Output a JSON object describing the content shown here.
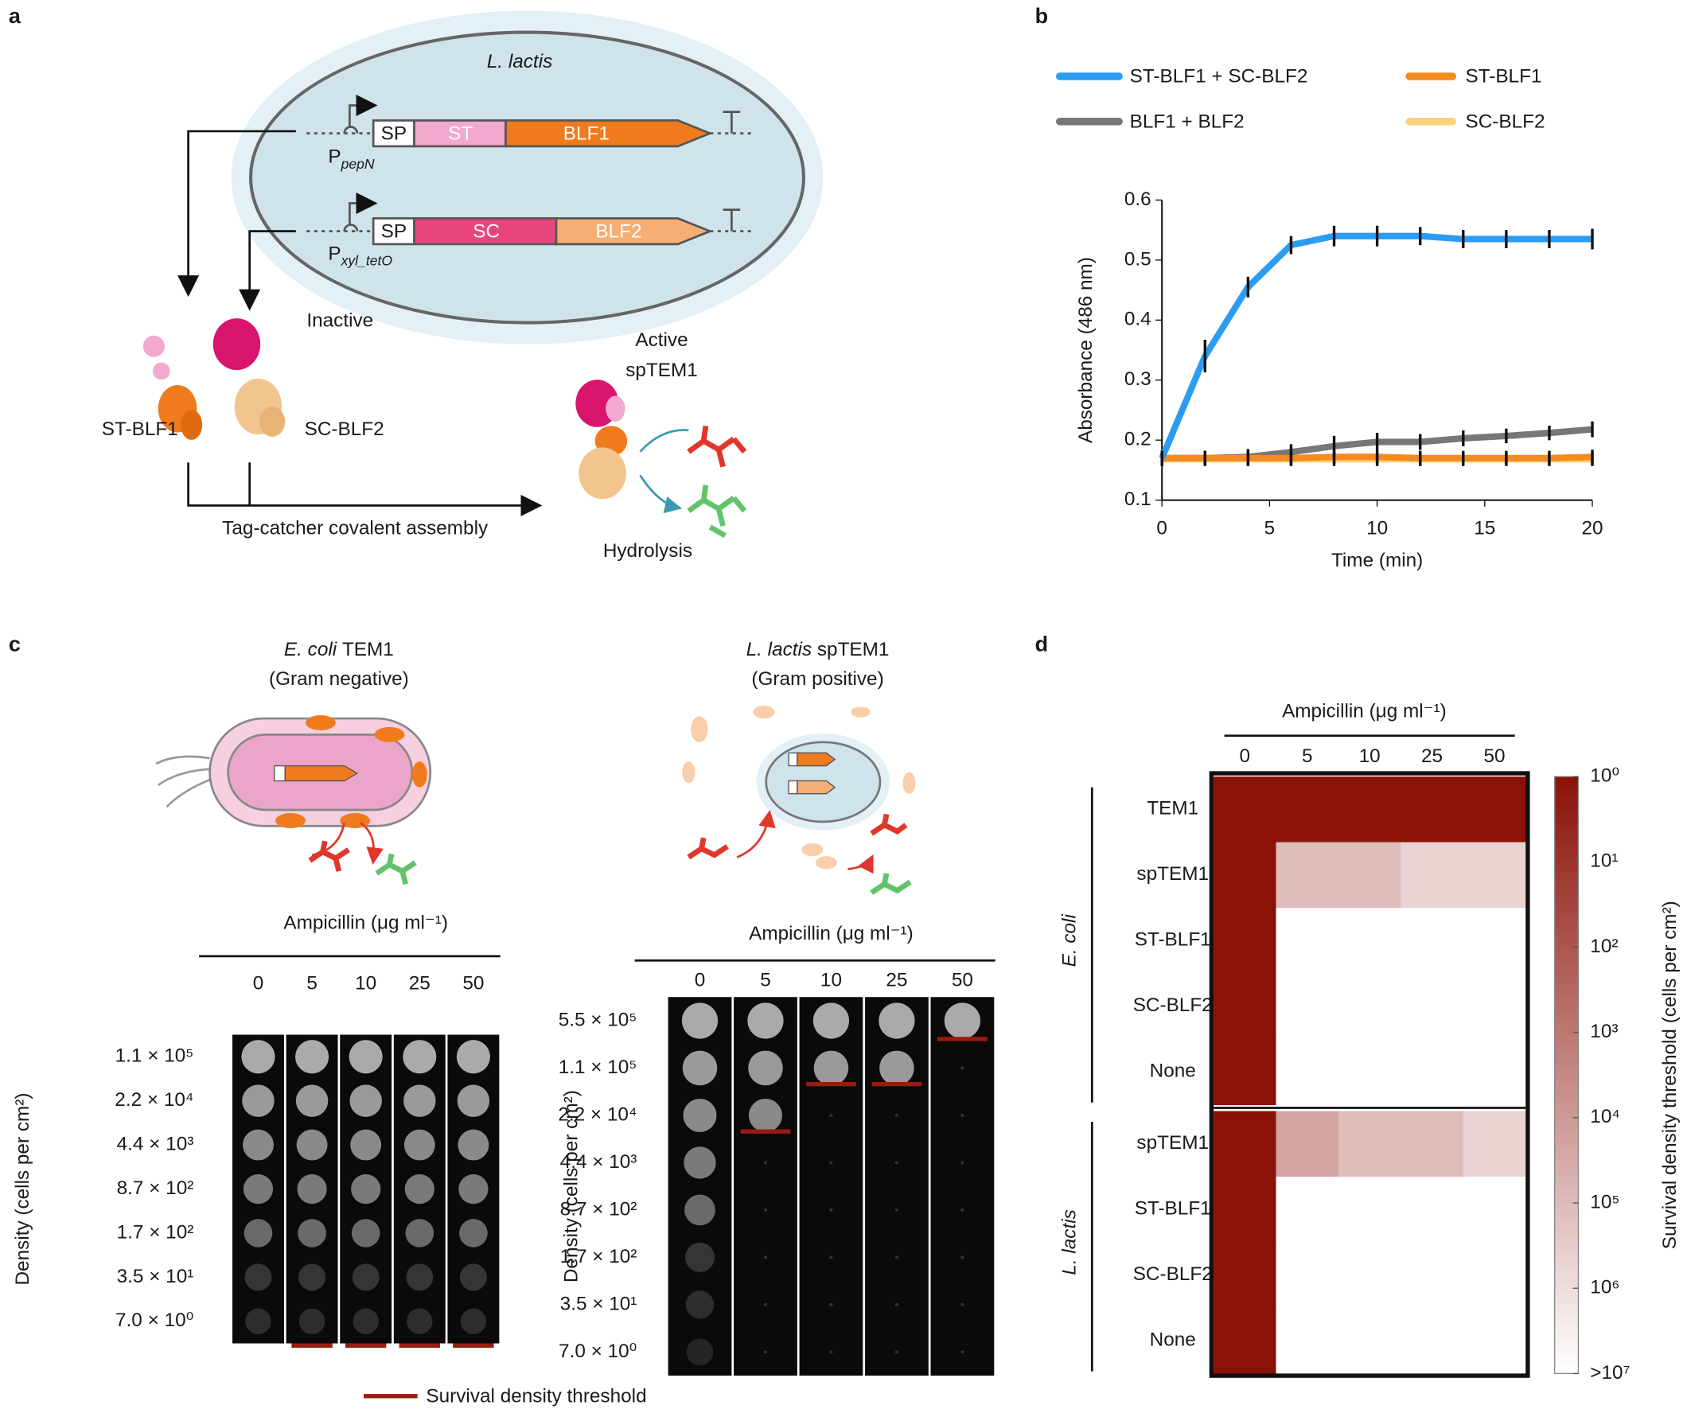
{
  "panel_labels": {
    "a": "a",
    "b": "b",
    "c": "c",
    "d": "d"
  },
  "panel_a": {
    "cell": "L. lactis",
    "construct1": {
      "promoter": "P",
      "promoter_sub": "pepN",
      "parts": [
        "SP",
        "ST",
        "BLF1"
      ]
    },
    "construct2": {
      "promoter": "P",
      "promoter_sub": "xyl_tetO",
      "parts": [
        "SP",
        "SC",
        "BLF2"
      ]
    },
    "inactive": "Inactive",
    "active": [
      "Active",
      "spTEM1"
    ],
    "protein1": "ST-BLF1",
    "protein2": "SC-BLF2",
    "assembly": "Tag-catcher covalent assembly",
    "hydrolysis": "Hydrolysis"
  },
  "panel_c": {
    "left": {
      "organism": "E. coli",
      "enzyme": "TEM1",
      "gram": "(Gram negative)",
      "ampicillin": "Ampicillin (μg ml⁻¹)",
      "concentrations": [
        0,
        5,
        10,
        25,
        50
      ],
      "density_title": "Density (cells per cm²)",
      "densities": [
        "1.1 × 10⁵",
        "2.2 × 10⁴",
        "4.4 × 10³",
        "8.7 × 10²",
        "1.7 × 10²",
        "3.5 × 10¹",
        "7.0 × 10⁰"
      ]
    },
    "right": {
      "organism": "L. lactis",
      "enzyme": "spTEM1",
      "gram": "(Gram positive)",
      "ampicillin": "Ampicillin (μg ml⁻¹)",
      "concentrations": [
        0,
        5,
        10,
        25,
        50
      ],
      "density_title": "Density (cells per cm²)",
      "densities": [
        "5.5 × 10⁵",
        "1.1 × 10⁵",
        "2.2 × 10⁴",
        "4.4 × 10³",
        "8.7 × 10²",
        "1.7 × 10²",
        "3.5 × 10¹",
        "7.0 × 10⁰"
      ]
    },
    "legend": "Survival density threshold"
  },
  "chart_data": [
    {
      "type": "line",
      "x_label": "Time (min)",
      "y_label": "Absorbance (486 nm)",
      "x": [
        0,
        2,
        4,
        6,
        8,
        10,
        12,
        14,
        16,
        18,
        20
      ],
      "xlim": [
        0,
        20
      ],
      "xticks": [
        0,
        5,
        10,
        15,
        20
      ],
      "ylim": [
        0.1,
        0.6
      ],
      "yticks": [
        0.1,
        0.2,
        0.3,
        0.4,
        0.5,
        0.6
      ],
      "series": [
        {
          "name": "ST-BLF1 + SC-BLF2",
          "color": "#2b9cf2",
          "values": [
            0.17,
            0.34,
            0.455,
            0.525,
            0.54,
            0.54,
            0.54,
            0.535,
            0.535,
            0.535,
            0.535
          ],
          "errors": [
            0.005,
            0.02,
            0.01,
            0.008,
            0.01,
            0.01,
            0.008,
            0.008,
            0.008,
            0.008,
            0.01
          ]
        },
        {
          "name": "ST-BLF1",
          "color": "#f58a1f",
          "values": [
            0.17,
            0.17,
            0.17,
            0.17,
            0.172,
            0.172,
            0.17,
            0.17,
            0.17,
            0.17,
            0.172
          ],
          "errors": [
            0.005,
            0.005,
            0.005,
            0.005,
            0.005,
            0.005,
            0.005,
            0.005,
            0.005,
            0.005,
            0.005
          ]
        },
        {
          "name": "BLF1 + BLF2",
          "color": "#777777",
          "values": [
            0.17,
            0.17,
            0.172,
            0.18,
            0.19,
            0.197,
            0.197,
            0.203,
            0.207,
            0.212,
            0.218
          ],
          "errors": [
            0.005,
            0.005,
            0.006,
            0.006,
            0.01,
            0.008,
            0.006,
            0.006,
            0.005,
            0.005,
            0.006
          ]
        },
        {
          "name": "SC-BLF2",
          "color": "#fbd27c",
          "values": [
            0.168,
            0.168,
            0.168,
            0.168,
            0.168,
            0.168,
            0.168,
            0.168,
            0.168,
            0.168,
            0.168
          ],
          "errors": [
            0.004,
            0.004,
            0.004,
            0.004,
            0.004,
            0.004,
            0.004,
            0.004,
            0.004,
            0.004,
            0.004
          ]
        }
      ]
    },
    {
      "type": "heatmap",
      "title": "Ampicillin (μg ml⁻¹)",
      "categories": [
        0,
        5,
        10,
        25,
        50
      ],
      "row_groups": [
        {
          "name": "E. coli",
          "rows": [
            {
              "name": "TEM1",
              "values": [
                1,
                1,
                1,
                1,
                1
              ]
            },
            {
              "name": "spTEM1",
              "values": [
                1,
                110000,
                110000,
                550000,
                550000
              ]
            },
            {
              "name": "ST-BLF1",
              "values": [
                1,
                10000000,
                10000000,
                10000000,
                10000000
              ]
            },
            {
              "name": "SC-BLF2",
              "values": [
                1,
                10000000,
                10000000,
                10000000,
                10000000
              ]
            },
            {
              "name": "None",
              "values": [
                1,
                10000000,
                10000000,
                10000000,
                10000000
              ]
            }
          ]
        },
        {
          "name": "L. lactis",
          "rows": [
            {
              "name": "spTEM1",
              "values": [
                1,
                22000,
                110000,
                110000,
                550000
              ]
            },
            {
              "name": "ST-BLF1",
              "values": [
                1,
                10000000,
                10000000,
                10000000,
                10000000
              ]
            },
            {
              "name": "SC-BLF2",
              "values": [
                1,
                10000000,
                10000000,
                10000000,
                10000000
              ]
            },
            {
              "name": "None",
              "values": [
                1,
                10000000,
                10000000,
                10000000,
                10000000
              ]
            }
          ]
        }
      ],
      "colorbar": {
        "label": "Survival density threshold (cells per cm²)",
        "log": true,
        "lim": [
          1,
          10000000
        ],
        "colors": [
          "#8b1208",
          "#ffffff"
        ],
        "ticks": [
          {
            "value": 1,
            "label": "10⁰"
          },
          {
            "value": 10,
            "label": "10¹"
          },
          {
            "value": 100,
            "label": "10²"
          },
          {
            "value": 1000,
            "label": "10³"
          },
          {
            "value": 10000,
            "label": "10⁴"
          },
          {
            "value": 100000,
            "label": "10⁵"
          },
          {
            "value": 1000000,
            "label": "10⁶"
          },
          {
            "value": 10000000,
            "label": ">10⁷"
          }
        ]
      }
    }
  ]
}
